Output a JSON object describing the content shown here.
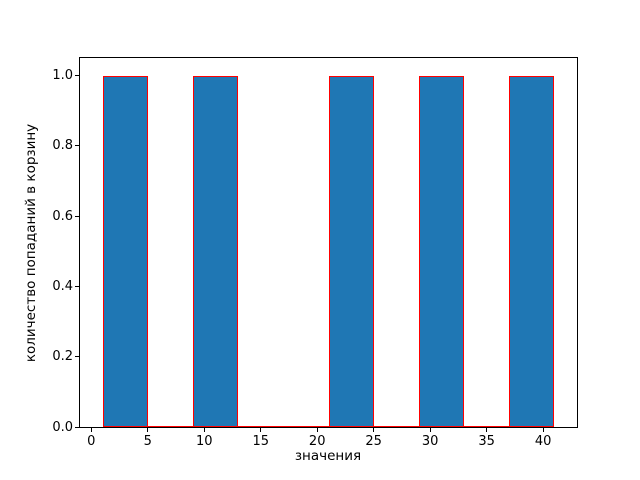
{
  "figure": {
    "background": "#ffffff"
  },
  "chart_data": {
    "type": "bar",
    "chart_kind": "histogram",
    "title": "",
    "xlabel": "значения",
    "ylabel": "количество попаданий в корзину",
    "xlim": [
      -1,
      43
    ],
    "ylim": [
      0,
      1.05
    ],
    "x_ticks": [
      0,
      5,
      10,
      15,
      20,
      25,
      30,
      35,
      40
    ],
    "y_ticks": [
      0.0,
      0.2,
      0.4,
      0.6,
      0.8,
      1.0
    ],
    "y_tick_labels": [
      "0.0",
      "0.2",
      "0.4",
      "0.6",
      "0.8",
      "1.0"
    ],
    "bin_edges": [
      1,
      5,
      9,
      13,
      17,
      21,
      25,
      29,
      33,
      37,
      41
    ],
    "counts": [
      1,
      0,
      1,
      0,
      0,
      1,
      0,
      1,
      0,
      1
    ],
    "grid": false,
    "legend": null,
    "colors": {
      "bar_fill": "#1f77b4",
      "bar_edge": "#ff0000",
      "spine": "#000000",
      "text": "#000000"
    }
  }
}
